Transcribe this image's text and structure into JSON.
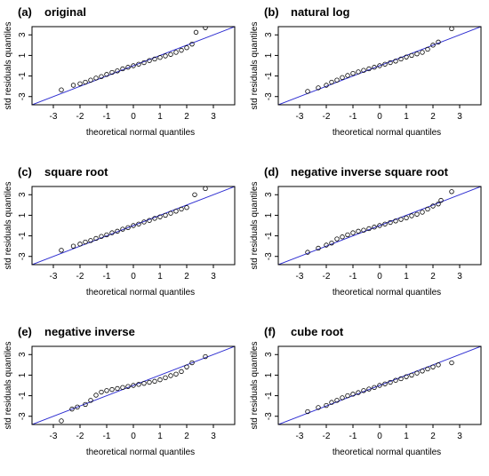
{
  "chart_data": [
    {
      "type": "scatter",
      "panel": "(a)",
      "title": "original",
      "xlabel": "theoretical normal quantiles",
      "ylabel": "std residuals quantiles",
      "xlim": [
        -3.8,
        3.8
      ],
      "ylim": [
        -3.8,
        3.8
      ],
      "xticks": [
        "-3",
        "-2",
        "-1",
        "0",
        "1",
        "2",
        "3"
      ],
      "yticks": [
        "-3",
        "-1",
        "1",
        "3"
      ],
      "reference_line": {
        "slope": 1,
        "intercept": 0,
        "color": "#2b2bd0"
      },
      "marker": "open-circle",
      "points": [
        [
          -2.7,
          -2.35
        ],
        [
          -2.25,
          -1.9
        ],
        [
          -2.0,
          -1.75
        ],
        [
          -1.8,
          -1.6
        ],
        [
          -1.6,
          -1.4
        ],
        [
          -1.4,
          -1.2
        ],
        [
          -1.2,
          -1.05
        ],
        [
          -1.0,
          -0.85
        ],
        [
          -0.8,
          -0.65
        ],
        [
          -0.6,
          -0.5
        ],
        [
          -0.4,
          -0.3
        ],
        [
          -0.2,
          -0.15
        ],
        [
          0.0,
          0.0
        ],
        [
          0.2,
          0.15
        ],
        [
          0.4,
          0.3
        ],
        [
          0.6,
          0.5
        ],
        [
          0.8,
          0.65
        ],
        [
          1.0,
          0.8
        ],
        [
          1.2,
          0.95
        ],
        [
          1.4,
          1.1
        ],
        [
          1.6,
          1.3
        ],
        [
          1.8,
          1.5
        ],
        [
          2.0,
          1.75
        ],
        [
          2.2,
          2.1
        ],
        [
          2.35,
          3.25
        ],
        [
          2.7,
          3.7
        ]
      ]
    },
    {
      "type": "scatter",
      "panel": "(b)",
      "title": "natural log",
      "xlabel": "theoretical normal quantiles",
      "ylabel": "std residuals quantiles",
      "xlim": [
        -3.8,
        3.8
      ],
      "ylim": [
        -3.8,
        3.8
      ],
      "xticks": [
        "-3",
        "-2",
        "-1",
        "0",
        "1",
        "2",
        "3"
      ],
      "yticks": [
        "-3",
        "-1",
        "1",
        "3"
      ],
      "reference_line": {
        "slope": 1,
        "intercept": 0,
        "color": "#2b2bd0"
      },
      "marker": "open-circle",
      "points": [
        [
          -2.7,
          -2.5
        ],
        [
          -2.3,
          -2.15
        ],
        [
          -2.0,
          -1.9
        ],
        [
          -1.8,
          -1.6
        ],
        [
          -1.6,
          -1.4
        ],
        [
          -1.4,
          -1.15
        ],
        [
          -1.2,
          -0.95
        ],
        [
          -1.0,
          -0.75
        ],
        [
          -0.8,
          -0.6
        ],
        [
          -0.6,
          -0.45
        ],
        [
          -0.4,
          -0.3
        ],
        [
          -0.2,
          -0.15
        ],
        [
          0.0,
          0.0
        ],
        [
          0.2,
          0.15
        ],
        [
          0.4,
          0.3
        ],
        [
          0.6,
          0.45
        ],
        [
          0.8,
          0.65
        ],
        [
          1.0,
          0.85
        ],
        [
          1.2,
          1.0
        ],
        [
          1.4,
          1.15
        ],
        [
          1.6,
          1.3
        ],
        [
          1.8,
          1.6
        ],
        [
          2.0,
          2.0
        ],
        [
          2.2,
          2.3
        ],
        [
          2.7,
          3.6
        ]
      ]
    },
    {
      "type": "scatter",
      "panel": "(c)",
      "title": "square root",
      "xlabel": "theoretical normal quantiles",
      "ylabel": "std residuals quantiles",
      "xlim": [
        -3.8,
        3.8
      ],
      "ylim": [
        -3.8,
        3.8
      ],
      "xticks": [
        "-3",
        "-2",
        "-1",
        "0",
        "1",
        "2",
        "3"
      ],
      "yticks": [
        "-3",
        "-1",
        "1",
        "3"
      ],
      "reference_line": {
        "slope": 1,
        "intercept": 0,
        "color": "#2b2bd0"
      },
      "marker": "open-circle",
      "points": [
        [
          -2.7,
          -2.4
        ],
        [
          -2.25,
          -2.0
        ],
        [
          -2.0,
          -1.8
        ],
        [
          -1.8,
          -1.6
        ],
        [
          -1.6,
          -1.45
        ],
        [
          -1.4,
          -1.25
        ],
        [
          -1.2,
          -1.05
        ],
        [
          -1.0,
          -0.9
        ],
        [
          -0.8,
          -0.7
        ],
        [
          -0.6,
          -0.55
        ],
        [
          -0.4,
          -0.35
        ],
        [
          -0.2,
          -0.2
        ],
        [
          0.0,
          0.0
        ],
        [
          0.2,
          0.15
        ],
        [
          0.4,
          0.35
        ],
        [
          0.6,
          0.5
        ],
        [
          0.8,
          0.7
        ],
        [
          1.0,
          0.85
        ],
        [
          1.2,
          1.0
        ],
        [
          1.4,
          1.2
        ],
        [
          1.6,
          1.4
        ],
        [
          1.8,
          1.6
        ],
        [
          2.0,
          1.75
        ],
        [
          2.3,
          3.0
        ],
        [
          2.7,
          3.6
        ]
      ]
    },
    {
      "type": "scatter",
      "panel": "(d)",
      "title": "negative inverse square root",
      "xlabel": "theoretical normal quantiles",
      "ylabel": "std residuals quantiles",
      "xlim": [
        -3.8,
        3.8
      ],
      "ylim": [
        -3.8,
        3.8
      ],
      "xticks": [
        "-3",
        "-2",
        "-1",
        "0",
        "1",
        "2",
        "3"
      ],
      "yticks": [
        "-3",
        "-1",
        "1",
        "3"
      ],
      "reference_line": {
        "slope": 1,
        "intercept": 0,
        "color": "#2b2bd0"
      },
      "marker": "open-circle",
      "points": [
        [
          -2.7,
          -2.6
        ],
        [
          -2.3,
          -2.2
        ],
        [
          -2.0,
          -1.9
        ],
        [
          -1.8,
          -1.7
        ],
        [
          -1.6,
          -1.3
        ],
        [
          -1.4,
          -1.1
        ],
        [
          -1.2,
          -0.9
        ],
        [
          -1.0,
          -0.7
        ],
        [
          -0.8,
          -0.55
        ],
        [
          -0.6,
          -0.45
        ],
        [
          -0.4,
          -0.3
        ],
        [
          -0.2,
          -0.15
        ],
        [
          0.0,
          0.0
        ],
        [
          0.2,
          0.15
        ],
        [
          0.4,
          0.3
        ],
        [
          0.6,
          0.45
        ],
        [
          0.8,
          0.6
        ],
        [
          1.0,
          0.75
        ],
        [
          1.2,
          0.95
        ],
        [
          1.4,
          1.1
        ],
        [
          1.6,
          1.3
        ],
        [
          1.8,
          1.6
        ],
        [
          2.0,
          1.9
        ],
        [
          2.2,
          2.1
        ],
        [
          2.3,
          2.45
        ],
        [
          2.7,
          3.3
        ]
      ]
    },
    {
      "type": "scatter",
      "panel": "(e)",
      "title": "negative inverse",
      "xlabel": "theoretical normal quantiles",
      "ylabel": "std residuals quantiles",
      "xlim": [
        -3.8,
        3.8
      ],
      "ylim": [
        -3.8,
        3.8
      ],
      "xticks": [
        "-3",
        "-2",
        "-1",
        "0",
        "1",
        "2",
        "3"
      ],
      "yticks": [
        "-3",
        "-1",
        "1",
        "3"
      ],
      "reference_line": {
        "slope": 1,
        "intercept": 0,
        "color": "#2b2bd0"
      },
      "marker": "open-circle",
      "points": [
        [
          -2.7,
          -3.45
        ],
        [
          -2.3,
          -2.3
        ],
        [
          -2.1,
          -2.1
        ],
        [
          -1.8,
          -1.85
        ],
        [
          -1.6,
          -1.45
        ],
        [
          -1.4,
          -0.95
        ],
        [
          -1.2,
          -0.65
        ],
        [
          -1.0,
          -0.5
        ],
        [
          -0.8,
          -0.4
        ],
        [
          -0.6,
          -0.3
        ],
        [
          -0.4,
          -0.2
        ],
        [
          -0.2,
          -0.1
        ],
        [
          0.0,
          0.0
        ],
        [
          0.2,
          0.1
        ],
        [
          0.4,
          0.2
        ],
        [
          0.6,
          0.3
        ],
        [
          0.8,
          0.4
        ],
        [
          1.0,
          0.55
        ],
        [
          1.2,
          0.75
        ],
        [
          1.4,
          0.95
        ],
        [
          1.6,
          1.1
        ],
        [
          1.8,
          1.35
        ],
        [
          2.0,
          1.8
        ],
        [
          2.2,
          2.2
        ],
        [
          2.7,
          2.8
        ]
      ]
    },
    {
      "type": "scatter",
      "panel": "(f)",
      "title": "cube root",
      "xlabel": "theoretical normal quantiles",
      "ylabel": "std residuals quantiles",
      "xlim": [
        -3.8,
        3.8
      ],
      "ylim": [
        -3.8,
        3.8
      ],
      "xticks": [
        "-3",
        "-2",
        "-1",
        "0",
        "1",
        "2",
        "3"
      ],
      "yticks": [
        "-3",
        "-1",
        "1",
        "3"
      ],
      "reference_line": {
        "slope": 1,
        "intercept": 0,
        "color": "#2b2bd0"
      },
      "marker": "open-circle",
      "points": [
        [
          -2.7,
          -2.55
        ],
        [
          -2.3,
          -2.15
        ],
        [
          -2.0,
          -1.95
        ],
        [
          -1.8,
          -1.65
        ],
        [
          -1.6,
          -1.45
        ],
        [
          -1.4,
          -1.2
        ],
        [
          -1.2,
          -1.0
        ],
        [
          -1.0,
          -0.85
        ],
        [
          -0.8,
          -0.7
        ],
        [
          -0.6,
          -0.5
        ],
        [
          -0.4,
          -0.35
        ],
        [
          -0.2,
          -0.2
        ],
        [
          0.0,
          0.0
        ],
        [
          0.2,
          0.15
        ],
        [
          0.4,
          0.3
        ],
        [
          0.6,
          0.5
        ],
        [
          0.8,
          0.65
        ],
        [
          1.0,
          0.85
        ],
        [
          1.2,
          1.0
        ],
        [
          1.4,
          1.2
        ],
        [
          1.6,
          1.4
        ],
        [
          1.8,
          1.6
        ],
        [
          2.0,
          1.8
        ],
        [
          2.2,
          2.0
        ],
        [
          2.7,
          2.2
        ]
      ]
    }
  ]
}
